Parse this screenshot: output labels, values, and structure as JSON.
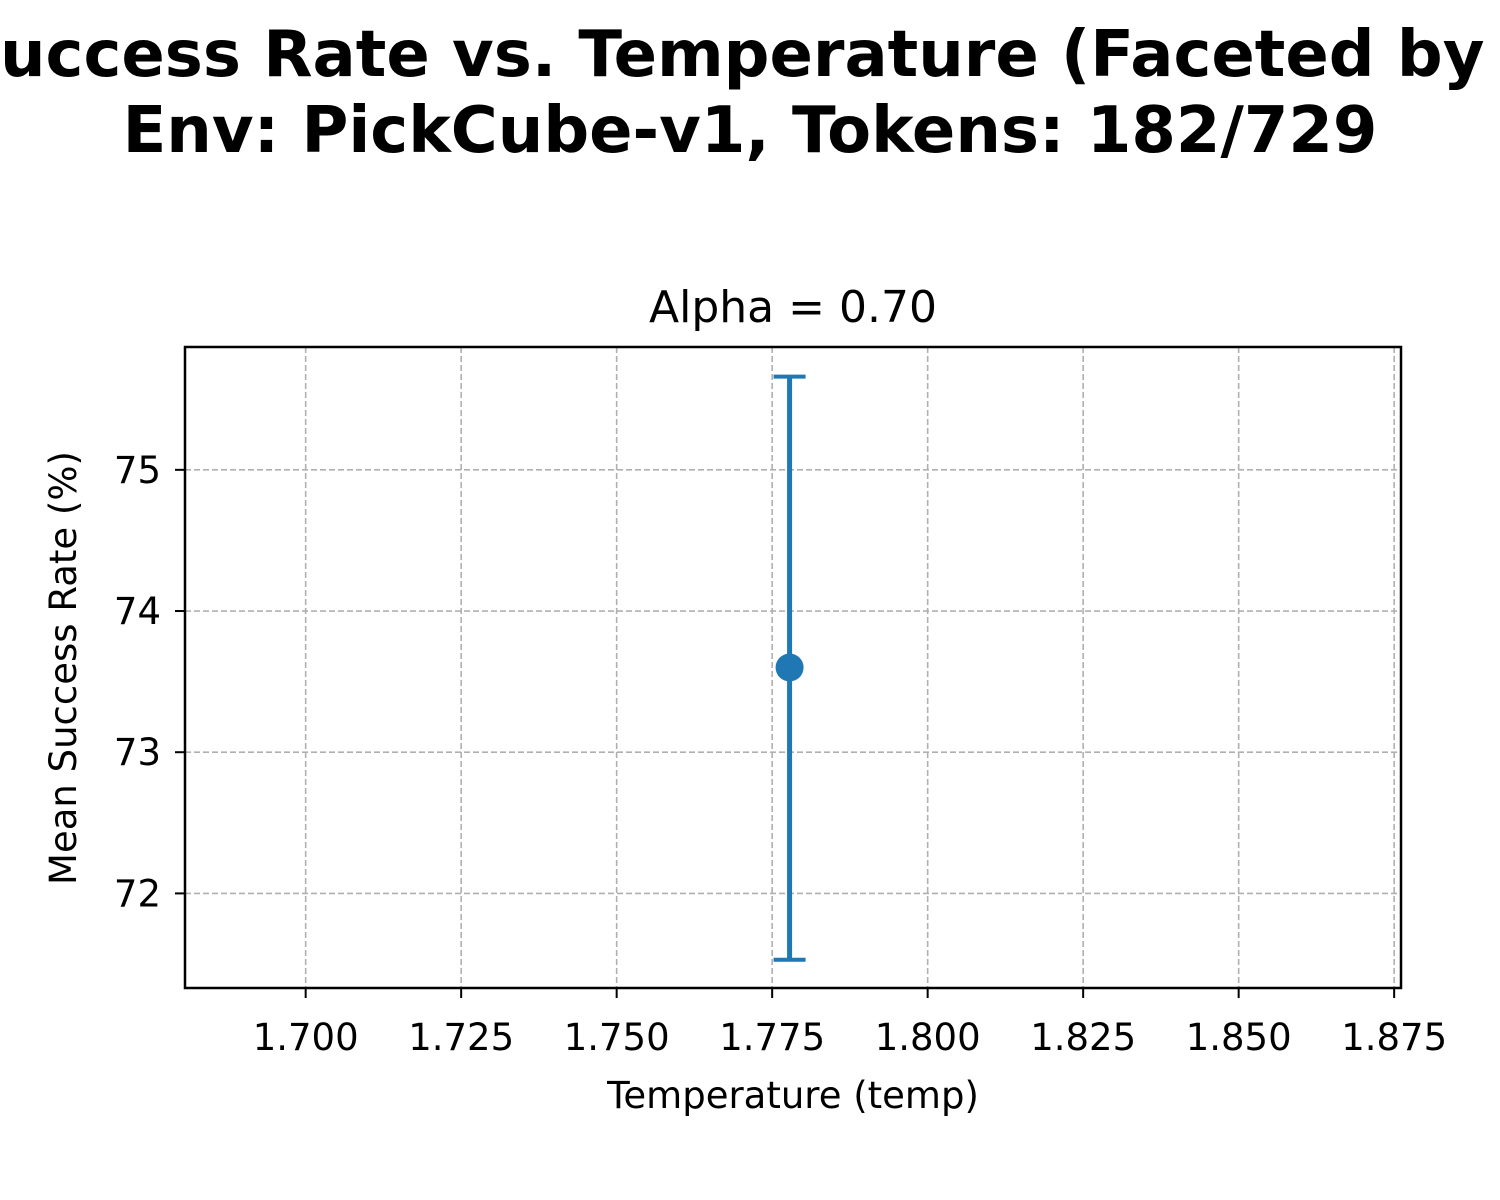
{
  "chart_data": {
    "type": "scatter",
    "title_lines": [
      "Mean Success Rate vs. Temperature (Faceted by Alpha)",
      "Env: PickCube-v1, Tokens: 182/729"
    ],
    "subplot_title": "Alpha = 0.70",
    "xlabel": "Temperature (temp)",
    "ylabel": "Mean Success Rate (%)",
    "xlim": [
      1.6806,
      1.8761
    ],
    "ylim": [
      71.33,
      75.87
    ],
    "x_ticks": [
      1.7,
      1.725,
      1.75,
      1.775,
      1.8,
      1.825,
      1.85,
      1.875
    ],
    "x_tick_labels": [
      "1.700",
      "1.725",
      "1.750",
      "1.775",
      "1.800",
      "1.825",
      "1.850",
      "1.875"
    ],
    "y_ticks": [
      72,
      73,
      74,
      75
    ],
    "y_tick_labels": [
      "72",
      "73",
      "74",
      "75"
    ],
    "grid": true,
    "series": [
      {
        "color": "#1f77b4",
        "points": [
          {
            "x": 1.7778,
            "y": 73.6,
            "yerr_low": 71.53,
            "yerr_high": 75.66
          }
        ]
      }
    ]
  }
}
